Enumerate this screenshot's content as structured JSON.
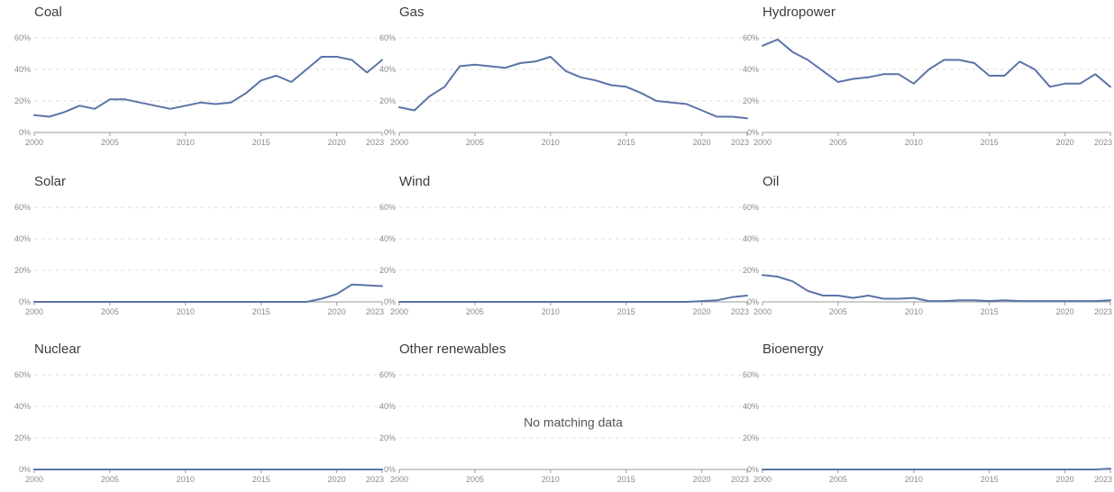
{
  "colors": {
    "series": "#5b73a8",
    "grid": "#dcdcdc",
    "axis": "#9a9a9a",
    "text": "#3b3b3b",
    "tick": "#8a8a8a"
  },
  "chart_data": [
    {
      "type": "line",
      "title": "Coal",
      "grid": true,
      "ylim": [
        0,
        60
      ],
      "xlim": [
        2000,
        2023
      ],
      "yticks": [
        "0%",
        "20%",
        "40%",
        "60%"
      ],
      "xticks": [
        "2000",
        "2005",
        "2010",
        "2015",
        "2020",
        "2023"
      ],
      "x": [
        2000,
        2001,
        2002,
        2003,
        2004,
        2005,
        2006,
        2007,
        2008,
        2009,
        2010,
        2011,
        2012,
        2013,
        2014,
        2015,
        2016,
        2017,
        2018,
        2019,
        2020,
        2021,
        2022,
        2023
      ],
      "values": [
        11,
        10,
        13,
        17,
        15,
        21,
        21,
        19,
        17,
        15,
        17,
        19,
        18,
        19,
        25,
        33,
        36,
        32,
        40,
        48,
        48,
        46,
        38,
        46
      ]
    },
    {
      "type": "line",
      "title": "Gas",
      "grid": true,
      "ylim": [
        0,
        60
      ],
      "xlim": [
        2000,
        2023
      ],
      "yticks": [
        "0%",
        "20%",
        "40%",
        "60%"
      ],
      "xticks": [
        "2000",
        "2005",
        "2010",
        "2015",
        "2020",
        "2023"
      ],
      "x": [
        2000,
        2001,
        2002,
        2003,
        2004,
        2005,
        2006,
        2007,
        2008,
        2009,
        2010,
        2011,
        2012,
        2013,
        2014,
        2015,
        2016,
        2017,
        2018,
        2019,
        2020,
        2021,
        2022,
        2023
      ],
      "values": [
        16,
        14,
        23,
        29,
        42,
        43,
        42,
        41,
        44,
        45,
        48,
        39,
        35,
        33,
        30,
        29,
        25,
        20,
        19,
        18,
        14,
        10,
        10,
        9
      ]
    },
    {
      "type": "line",
      "title": "Hydropower",
      "grid": true,
      "ylim": [
        0,
        60
      ],
      "xlim": [
        2000,
        2023
      ],
      "yticks": [
        "0%",
        "20%",
        "40%",
        "60%"
      ],
      "xticks": [
        "2000",
        "2005",
        "2010",
        "2015",
        "2020",
        "2023"
      ],
      "x": [
        2000,
        2001,
        2002,
        2003,
        2004,
        2005,
        2006,
        2007,
        2008,
        2009,
        2010,
        2011,
        2012,
        2013,
        2014,
        2015,
        2016,
        2017,
        2018,
        2019,
        2020,
        2021,
        2022,
        2023
      ],
      "values": [
        55,
        59,
        51,
        46,
        39,
        32,
        34,
        35,
        37,
        37,
        31,
        40,
        46,
        46,
        44,
        36,
        36,
        45,
        40,
        29,
        31,
        31,
        37,
        29
      ]
    },
    {
      "type": "line",
      "title": "Solar",
      "grid": true,
      "ylim": [
        0,
        60
      ],
      "xlim": [
        2000,
        2023
      ],
      "yticks": [
        "0%",
        "20%",
        "40%",
        "60%"
      ],
      "xticks": [
        "2000",
        "2005",
        "2010",
        "2015",
        "2020",
        "2023"
      ],
      "x": [
        2000,
        2001,
        2002,
        2003,
        2004,
        2005,
        2006,
        2007,
        2008,
        2009,
        2010,
        2011,
        2012,
        2013,
        2014,
        2015,
        2016,
        2017,
        2018,
        2019,
        2020,
        2021,
        2022,
        2023
      ],
      "values": [
        0,
        0,
        0,
        0,
        0,
        0,
        0,
        0,
        0,
        0,
        0,
        0,
        0,
        0,
        0,
        0,
        0,
        0,
        0,
        2,
        5,
        11,
        10.5,
        10
      ]
    },
    {
      "type": "line",
      "title": "Wind",
      "grid": true,
      "ylim": [
        0,
        60
      ],
      "xlim": [
        2000,
        2023
      ],
      "yticks": [
        "0%",
        "20%",
        "40%",
        "60%"
      ],
      "xticks": [
        "2000",
        "2005",
        "2010",
        "2015",
        "2020",
        "2023"
      ],
      "x": [
        2000,
        2001,
        2002,
        2003,
        2004,
        2005,
        2006,
        2007,
        2008,
        2009,
        2010,
        2011,
        2012,
        2013,
        2014,
        2015,
        2016,
        2017,
        2018,
        2019,
        2020,
        2021,
        2022,
        2023
      ],
      "values": [
        0,
        0,
        0,
        0,
        0,
        0,
        0,
        0,
        0,
        0,
        0,
        0,
        0,
        0,
        0,
        0,
        0,
        0,
        0,
        0,
        0.5,
        1,
        3,
        4
      ]
    },
    {
      "type": "line",
      "title": "Oil",
      "grid": true,
      "ylim": [
        0,
        60
      ],
      "xlim": [
        2000,
        2023
      ],
      "yticks": [
        "0%",
        "20%",
        "40%",
        "60%"
      ],
      "xticks": [
        "2000",
        "2005",
        "2010",
        "2015",
        "2020",
        "2023"
      ],
      "x": [
        2000,
        2001,
        2002,
        2003,
        2004,
        2005,
        2006,
        2007,
        2008,
        2009,
        2010,
        2011,
        2012,
        2013,
        2014,
        2015,
        2016,
        2017,
        2018,
        2019,
        2020,
        2021,
        2022,
        2023
      ],
      "values": [
        17,
        16,
        13,
        7,
        4,
        4,
        2.5,
        4,
        2,
        2,
        2.5,
        0.5,
        0.5,
        1,
        1,
        0.5,
        1,
        0.5,
        0.5,
        0.5,
        0.5,
        0.5,
        0.5,
        1
      ]
    },
    {
      "type": "line",
      "title": "Nuclear",
      "grid": true,
      "ylim": [
        0,
        60
      ],
      "xlim": [
        2000,
        2023
      ],
      "yticks": [
        "0%",
        "20%",
        "40%",
        "60%"
      ],
      "xticks": [
        "2000",
        "2005",
        "2010",
        "2015",
        "2020",
        "2023"
      ],
      "x": [
        2000,
        2001,
        2002,
        2003,
        2004,
        2005,
        2006,
        2007,
        2008,
        2009,
        2010,
        2011,
        2012,
        2013,
        2014,
        2015,
        2016,
        2017,
        2018,
        2019,
        2020,
        2021,
        2022,
        2023
      ],
      "values": [
        0,
        0,
        0,
        0,
        0,
        0,
        0,
        0,
        0,
        0,
        0,
        0,
        0,
        0,
        0,
        0,
        0,
        0,
        0,
        0,
        0,
        0,
        0,
        0
      ]
    },
    {
      "type": "line",
      "title": "Other renewables",
      "grid": true,
      "ylim": [
        0,
        60
      ],
      "xlim": [
        2000,
        2023
      ],
      "yticks": [
        "0%",
        "20%",
        "40%",
        "60%"
      ],
      "xticks": [
        "2000",
        "2005",
        "2010",
        "2015",
        "2020",
        "2023"
      ],
      "x": [],
      "values": [],
      "message": "No matching data"
    },
    {
      "type": "line",
      "title": "Bioenergy",
      "grid": true,
      "ylim": [
        0,
        60
      ],
      "xlim": [
        2000,
        2023
      ],
      "yticks": [
        "0%",
        "20%",
        "40%",
        "60%"
      ],
      "xticks": [
        "2000",
        "2005",
        "2010",
        "2015",
        "2020",
        "2023"
      ],
      "x": [
        2000,
        2001,
        2002,
        2003,
        2004,
        2005,
        2006,
        2007,
        2008,
        2009,
        2010,
        2011,
        2012,
        2013,
        2014,
        2015,
        2016,
        2017,
        2018,
        2019,
        2020,
        2021,
        2022,
        2023
      ],
      "values": [
        0,
        0,
        0,
        0,
        0,
        0,
        0,
        0,
        0,
        0,
        0,
        0,
        0,
        0,
        0,
        0,
        0,
        0,
        0,
        0,
        0,
        0,
        0,
        0.5
      ]
    }
  ]
}
